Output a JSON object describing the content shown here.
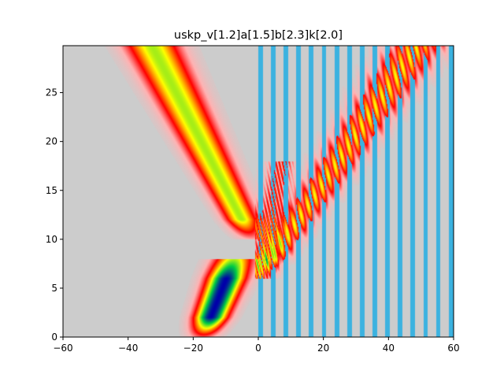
{
  "chart_data": {
    "type": "heatmap",
    "title": "uskp_v[1.2]a[1.5]b[2.3]k[2.0]",
    "xlabel": "",
    "ylabel": "",
    "xlim": [
      -60,
      60
    ],
    "ylim": [
      0,
      29.8
    ],
    "x_ticks": [
      -60,
      -40,
      -20,
      0,
      20,
      40,
      60
    ],
    "x_tick_labels": [
      "−60",
      "−40",
      "−20",
      "0",
      "20",
      "40",
      "60"
    ],
    "y_ticks": [
      0,
      5,
      10,
      15,
      20,
      25
    ],
    "y_tick_labels": [
      "0",
      "5",
      "10",
      "15",
      "20",
      "25"
    ],
    "colors": {
      "background": "#cccccc",
      "barrier": "#3bb2e0",
      "colormap": [
        "#cccccc",
        "#ffb3b3",
        "#ff0000",
        "#ffff00",
        "#00cc44",
        "#0000aa"
      ]
    },
    "barrier_strips": {
      "start": 0,
      "end": 60,
      "period": 3.9,
      "width": 1.4
    },
    "wave_packets": [
      {
        "name": "incident",
        "x0": -17,
        "t0": 0,
        "velocity": 1.2,
        "t_end": 8,
        "peak": 1.0
      },
      {
        "name": "reflected",
        "x0": -2,
        "t0": 10,
        "velocity": -1.55,
        "t_end": 29.8,
        "peak": 0.62
      },
      {
        "name": "transmitted",
        "x0": 0,
        "t0": 6,
        "velocity": 2.05,
        "t_end": 29.8,
        "peak": 0.55
      }
    ]
  }
}
